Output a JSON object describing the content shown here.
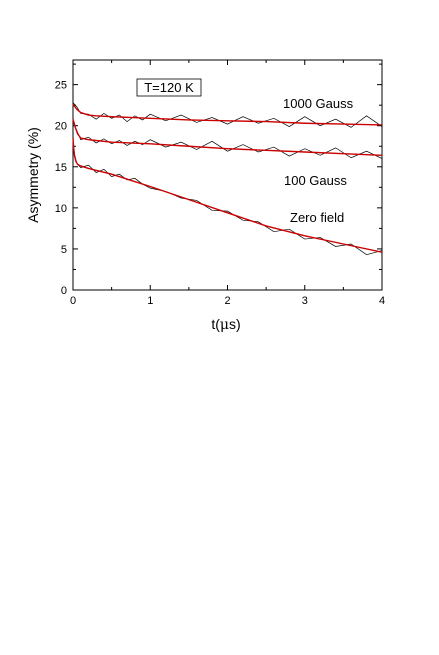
{
  "chart_data": {
    "type": "line",
    "title": "",
    "xlabel_prefix": "t(",
    "xlabel_greek": "μ",
    "xlabel_suffix": "s)",
    "ylabel": "Asymmetry (%)",
    "xlim": [
      0,
      4
    ],
    "ylim": [
      0,
      28
    ],
    "x_ticks": [
      0,
      1,
      2,
      3,
      4
    ],
    "y_ticks": [
      0,
      5,
      10,
      15,
      20,
      25
    ],
    "grid": false,
    "legend": "none",
    "annotations": {
      "temperature": "T=120 K",
      "curve_1000": "1000 Gauss",
      "curve_100": "100 Gauss",
      "curve_zero": "Zero field"
    },
    "series": [
      {
        "name": "1000 Gauss",
        "data_color": "#000000",
        "fit_color": "#cc0000",
        "fit": {
          "x": [
            0,
            0.05,
            0.1,
            0.2,
            0.3,
            0.5,
            1,
            1.5,
            2,
            2.5,
            3,
            3.5,
            4
          ],
          "y": [
            22.6,
            22.0,
            21.6,
            21.3,
            21.2,
            21.1,
            20.9,
            20.7,
            20.6,
            20.5,
            20.3,
            20.2,
            20.1
          ]
        },
        "data": {
          "x": [
            0,
            0.05,
            0.1,
            0.2,
            0.3,
            0.4,
            0.5,
            0.6,
            0.7,
            0.8,
            0.9,
            1,
            1.2,
            1.4,
            1.6,
            1.8,
            2,
            2.2,
            2.4,
            2.6,
            2.8,
            3,
            3.2,
            3.4,
            3.6,
            3.8,
            4
          ],
          "y": [
            22.8,
            22.3,
            21.5,
            21.4,
            20.8,
            21.5,
            20.9,
            21.3,
            20.5,
            21.2,
            20.7,
            21.4,
            20.6,
            21.3,
            20.4,
            21.0,
            20.2,
            21.1,
            20.3,
            20.9,
            19.9,
            21.1,
            20.0,
            20.8,
            19.8,
            21.2,
            19.9
          ]
        }
      },
      {
        "name": "100 Gauss",
        "data_color": "#000000",
        "fit_color": "#cc0000",
        "fit": {
          "x": [
            0,
            0.03,
            0.06,
            0.1,
            0.2,
            0.3,
            0.5,
            1,
            1.5,
            2,
            2.5,
            3,
            3.5,
            4
          ],
          "y": [
            20.8,
            19.8,
            19.0,
            18.5,
            18.3,
            18.2,
            18.0,
            17.8,
            17.5,
            17.2,
            17.0,
            16.8,
            16.6,
            16.4
          ]
        },
        "data": {
          "x": [
            0,
            0.05,
            0.1,
            0.2,
            0.3,
            0.4,
            0.5,
            0.6,
            0.7,
            0.8,
            0.9,
            1,
            1.2,
            1.4,
            1.6,
            1.8,
            2,
            2.2,
            2.4,
            2.6,
            2.8,
            3,
            3.2,
            3.4,
            3.6,
            3.8,
            4
          ],
          "y": [
            20.5,
            19.4,
            18.3,
            18.6,
            17.9,
            18.4,
            17.8,
            18.2,
            17.6,
            18.1,
            17.7,
            18.3,
            17.4,
            18.0,
            17.1,
            18.1,
            16.9,
            17.7,
            16.8,
            17.4,
            16.3,
            17.2,
            16.4,
            17.3,
            16.1,
            16.9,
            16.0
          ]
        }
      },
      {
        "name": "Zero field",
        "data_color": "#000000",
        "fit_color": "#cc0000",
        "fit": {
          "x": [
            0,
            0.01,
            0.02,
            0.04,
            0.06,
            0.1,
            0.2,
            0.5,
            1,
            1.5,
            2,
            2.5,
            3,
            3.5,
            4
          ],
          "y": [
            18.5,
            17.2,
            16.3,
            15.6,
            15.3,
            15.1,
            14.8,
            14.1,
            12.6,
            11.0,
            9.4,
            7.8,
            6.6,
            5.6,
            4.6
          ]
        },
        "data": {
          "x": [
            0,
            0.02,
            0.05,
            0.1,
            0.2,
            0.3,
            0.4,
            0.5,
            0.6,
            0.7,
            0.8,
            0.9,
            1,
            1.2,
            1.4,
            1.6,
            1.8,
            2,
            2.2,
            2.4,
            2.6,
            2.8,
            3,
            3.2,
            3.4,
            3.6,
            3.8,
            4
          ],
          "y": [
            18.0,
            16.5,
            15.4,
            14.9,
            15.2,
            14.3,
            14.7,
            13.8,
            14.1,
            13.4,
            13.6,
            12.9,
            12.4,
            12.0,
            11.2,
            10.9,
            9.7,
            9.6,
            8.5,
            8.3,
            7.1,
            7.4,
            6.2,
            6.4,
            5.3,
            5.6,
            4.3,
            4.8
          ]
        }
      }
    ]
  }
}
